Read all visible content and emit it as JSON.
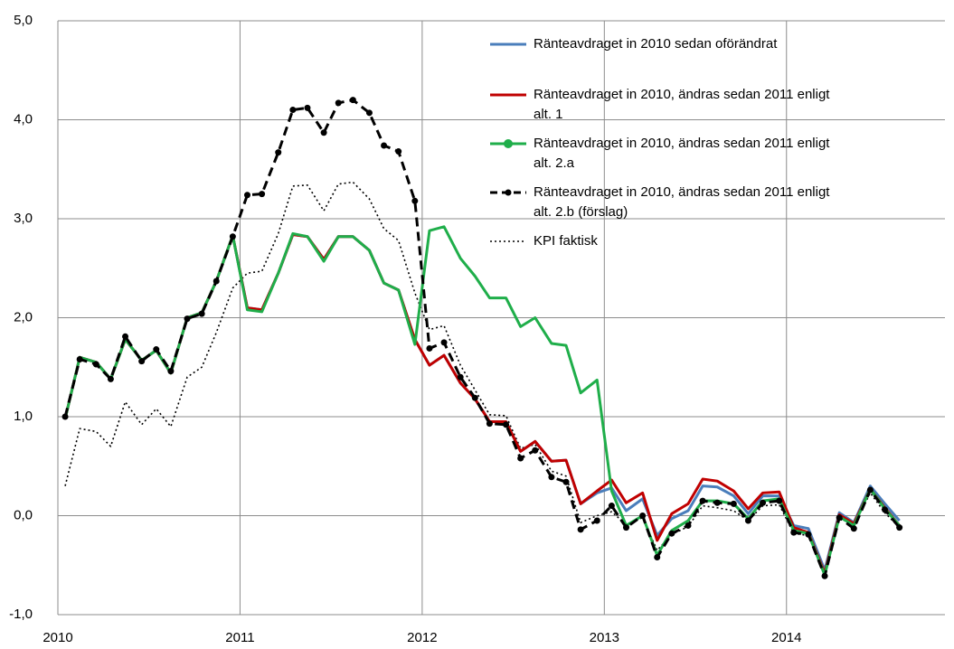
{
  "chart_data": {
    "type": "line",
    "x": [
      2010.04,
      2010.12,
      2010.21,
      2010.29,
      2010.37,
      2010.46,
      2010.54,
      2010.62,
      2010.71,
      2010.79,
      2010.87,
      2010.96,
      2011.04,
      2011.12,
      2011.21,
      2011.29,
      2011.37,
      2011.46,
      2011.54,
      2011.62,
      2011.71,
      2011.79,
      2011.87,
      2011.96,
      2012.04,
      2012.12,
      2012.21,
      2012.29,
      2012.37,
      2012.46,
      2012.54,
      2012.62,
      2012.71,
      2012.79,
      2012.87,
      2012.96,
      2013.04,
      2013.12,
      2013.21,
      2013.29,
      2013.37,
      2013.46,
      2013.54,
      2013.62,
      2013.71,
      2013.79,
      2013.87,
      2013.96,
      2014.04,
      2014.12,
      2014.21,
      2014.29,
      2014.37,
      2014.46,
      2014.54,
      2014.62
    ],
    "xlim": [
      2010,
      2014.87
    ],
    "xticks": [
      2010,
      2011,
      2012,
      2013,
      2014
    ],
    "ylim": [
      -1,
      5
    ],
    "yticks": [
      {
        "value": -1,
        "label": "-1,0"
      },
      {
        "value": 0,
        "label": "0,0"
      },
      {
        "value": 1,
        "label": "1,0"
      },
      {
        "value": 2,
        "label": "2,0"
      },
      {
        "value": 3,
        "label": "3,0"
      },
      {
        "value": 4,
        "label": "4,0"
      },
      {
        "value": 5,
        "label": "5,0"
      }
    ],
    "grid": true,
    "legend": "top-right",
    "series": [
      {
        "name": "Ränteavdraget in 2010 sedan oförändrat",
        "color": "#4a7ebb",
        "line_style": "solid",
        "markers": false,
        "values": [
          0.98,
          1.6,
          1.55,
          1.38,
          1.78,
          1.57,
          1.67,
          1.44,
          2.0,
          2.05,
          2.37,
          2.83,
          2.1,
          2.08,
          2.45,
          2.84,
          2.82,
          2.59,
          2.82,
          2.82,
          2.68,
          2.35,
          2.28,
          1.78,
          1.52,
          1.62,
          1.34,
          1.18,
          0.95,
          0.95,
          0.65,
          0.75,
          0.55,
          0.56,
          0.12,
          0.23,
          0.28,
          0.05,
          0.17,
          -0.2,
          -0.03,
          0.05,
          0.3,
          0.29,
          0.2,
          0.02,
          0.2,
          0.2,
          -0.1,
          -0.13,
          -0.55,
          0.03,
          -0.07,
          0.3,
          0.12,
          -0.05
        ]
      },
      {
        "name": "Ränteavdraget in 2010, ändras sedan 2011 enligt alt. 1",
        "color": "#c00000",
        "line_style": "solid",
        "markers": false,
        "values": [
          0.98,
          1.6,
          1.55,
          1.38,
          1.78,
          1.57,
          1.67,
          1.44,
          2.0,
          2.05,
          2.37,
          2.83,
          2.1,
          2.08,
          2.45,
          2.84,
          2.82,
          2.59,
          2.82,
          2.82,
          2.68,
          2.35,
          2.28,
          1.78,
          1.52,
          1.62,
          1.34,
          1.18,
          0.95,
          0.95,
          0.65,
          0.75,
          0.55,
          0.56,
          0.12,
          0.25,
          0.36,
          0.13,
          0.23,
          -0.25,
          0.02,
          0.12,
          0.37,
          0.35,
          0.25,
          0.07,
          0.23,
          0.24,
          -0.12,
          -0.17,
          -0.58,
          0.01,
          -0.08,
          0.27,
          0.08,
          -0.1
        ]
      },
      {
        "name": "Ränteavdraget in 2010, ändras sedan 2011 enligt alt. 2.a",
        "color": "#1fae4a",
        "line_style": "solid",
        "markers": false,
        "legend_marker": true,
        "values": [
          0.98,
          1.6,
          1.55,
          1.38,
          1.78,
          1.57,
          1.67,
          1.44,
          2.0,
          2.05,
          2.37,
          2.83,
          2.08,
          2.06,
          2.45,
          2.85,
          2.82,
          2.57,
          2.82,
          2.82,
          2.68,
          2.35,
          2.28,
          1.73,
          2.88,
          2.92,
          2.6,
          2.42,
          2.2,
          2.2,
          1.91,
          2.0,
          1.74,
          1.72,
          1.24,
          1.37,
          0.25,
          -0.1,
          0.0,
          -0.4,
          -0.15,
          -0.05,
          0.15,
          0.15,
          0.12,
          -0.03,
          0.15,
          0.17,
          -0.15,
          -0.18,
          -0.6,
          -0.01,
          -0.1,
          0.27,
          0.07,
          -0.1
        ]
      },
      {
        "name": "Ränteavdraget in 2010, ändras sedan 2011 enligt alt. 2.b (förslag)",
        "color": "#000000",
        "line_style": "dashed",
        "markers": true,
        "values": [
          1.0,
          1.58,
          1.53,
          1.38,
          1.81,
          1.56,
          1.68,
          1.46,
          1.99,
          2.04,
          2.37,
          2.82,
          3.24,
          3.25,
          3.67,
          4.1,
          4.12,
          3.87,
          4.17,
          4.2,
          4.07,
          3.74,
          3.68,
          3.18,
          1.69,
          1.75,
          1.4,
          1.19,
          0.93,
          0.92,
          0.58,
          0.66,
          0.39,
          0.34,
          -0.14,
          -0.05,
          0.1,
          -0.12,
          0.0,
          -0.42,
          -0.18,
          -0.1,
          0.15,
          0.13,
          0.12,
          -0.05,
          0.13,
          0.15,
          -0.17,
          -0.19,
          -0.61,
          -0.02,
          -0.13,
          0.26,
          0.06,
          -0.12
        ]
      },
      {
        "name": "KPI faktisk",
        "color": "#000000",
        "line_style": "dotted",
        "markers": false,
        "values": [
          0.3,
          0.88,
          0.85,
          0.7,
          1.15,
          0.92,
          1.08,
          0.9,
          1.4,
          1.5,
          1.85,
          2.3,
          2.45,
          2.47,
          2.85,
          3.33,
          3.34,
          3.08,
          3.35,
          3.37,
          3.2,
          2.9,
          2.78,
          2.25,
          1.88,
          1.92,
          1.52,
          1.27,
          1.02,
          1.01,
          0.68,
          0.72,
          0.45,
          0.4,
          -0.07,
          0.0,
          0.04,
          -0.09,
          -0.02,
          -0.35,
          -0.19,
          -0.11,
          0.1,
          0.08,
          0.05,
          -0.05,
          0.1,
          0.11,
          -0.18,
          -0.2,
          -0.6,
          -0.02,
          -0.1,
          0.23,
          0.03,
          -0.12
        ]
      }
    ],
    "draw_order": [
      4,
      0,
      1,
      2,
      3
    ]
  }
}
